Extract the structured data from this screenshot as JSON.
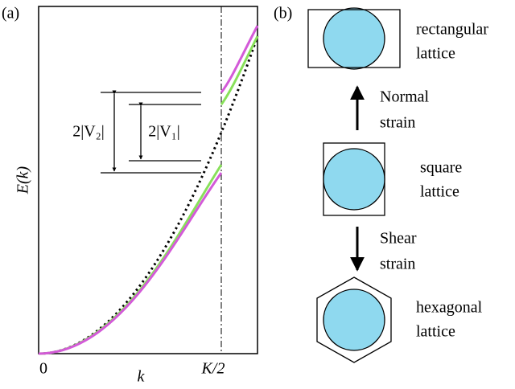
{
  "panel_a": {
    "label": "(a)",
    "y_label": "E(k)",
    "x_label": "k",
    "x_start": "0",
    "x_mid": "K/2",
    "gap_2": "2|V₂|",
    "gap_1": "2|V₁|"
  },
  "panel_b": {
    "label": "(b)",
    "rectangular": [
      "rectangular",
      "lattice"
    ],
    "normal": [
      "Normal",
      "strain"
    ],
    "square": [
      "square",
      "lattice"
    ],
    "shear": [
      "Shear",
      "strain"
    ],
    "hexagonal": [
      "hexagonal",
      "lattice"
    ]
  }
}
